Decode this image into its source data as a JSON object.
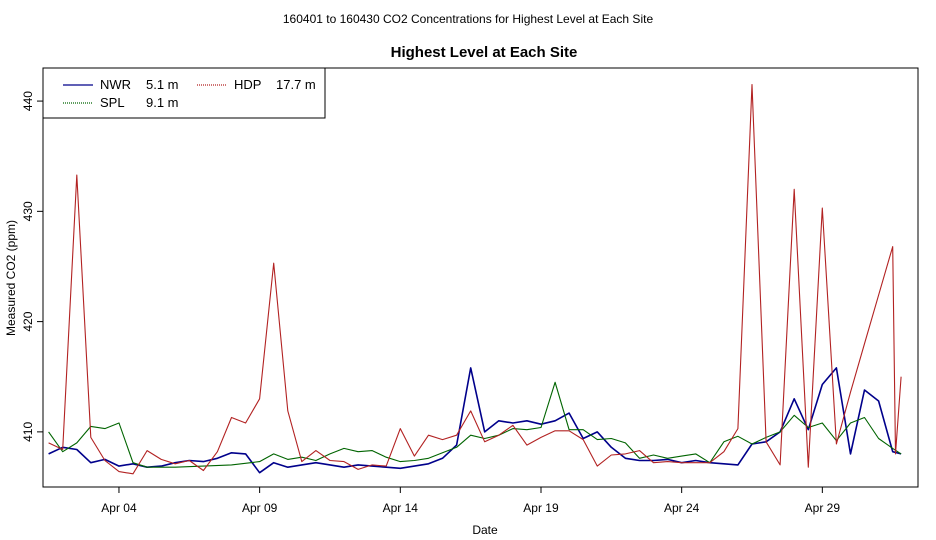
{
  "header": {
    "title": "160401  to  160430 CO2 Concentrations for Highest Level at Each Site"
  },
  "chart_data": {
    "type": "line",
    "title": "Highest Level at Each Site",
    "xlabel": "Date",
    "ylabel": "Measured CO2 (ppm)",
    "xlim": [
      1.3,
      32.4
    ],
    "ylim": [
      405,
      443
    ],
    "x_ticks": [
      {
        "value": 4,
        "label": "Apr 04"
      },
      {
        "value": 9,
        "label": "Apr 09"
      },
      {
        "value": 14,
        "label": "Apr 14"
      },
      {
        "value": 19,
        "label": "Apr 19"
      },
      {
        "value": 24,
        "label": "Apr 24"
      },
      {
        "value": 29,
        "label": "Apr 29"
      }
    ],
    "y_ticks": [
      410,
      420,
      430,
      440
    ],
    "legend": {
      "position": "top-left",
      "entries": [
        {
          "name": "NWR",
          "height": "5.1 m"
        },
        {
          "name": "SPL",
          "height": "9.1 m"
        },
        {
          "name": "HDP",
          "height": "17.7 m"
        }
      ]
    },
    "series": [
      {
        "name": "NWR",
        "height": "5.1 m",
        "color": "#00008b",
        "points": [
          [
            1.5,
            408
          ],
          [
            2.0,
            408.6
          ],
          [
            2.5,
            408.4
          ],
          [
            3.0,
            407.2
          ],
          [
            3.5,
            407.5
          ],
          [
            4.0,
            406.9
          ],
          [
            4.5,
            407.1
          ],
          [
            5.0,
            406.8
          ],
          [
            5.5,
            406.9
          ],
          [
            6.0,
            407.2
          ],
          [
            6.5,
            407.4
          ],
          [
            7.0,
            407.3
          ],
          [
            7.5,
            407.6
          ],
          [
            8.0,
            408.1
          ],
          [
            8.5,
            408.0
          ],
          [
            9.0,
            406.3
          ],
          [
            9.5,
            407.2
          ],
          [
            10.0,
            406.8
          ],
          [
            10.5,
            407.0
          ],
          [
            11.0,
            407.2
          ],
          [
            11.5,
            407.0
          ],
          [
            12.0,
            406.8
          ],
          [
            12.5,
            407.0
          ],
          [
            13.0,
            406.9
          ],
          [
            13.5,
            406.8
          ],
          [
            14.0,
            406.7
          ],
          [
            14.5,
            406.9
          ],
          [
            15.0,
            407.1
          ],
          [
            15.5,
            407.6
          ],
          [
            16.0,
            408.8
          ],
          [
            16.5,
            415.8
          ],
          [
            17.0,
            410.0
          ],
          [
            17.5,
            411.0
          ],
          [
            18.0,
            410.8
          ],
          [
            18.5,
            411.0
          ],
          [
            19.0,
            410.7
          ],
          [
            19.5,
            411.0
          ],
          [
            20.0,
            411.7
          ],
          [
            20.5,
            409.4
          ],
          [
            21.0,
            410.0
          ],
          [
            21.5,
            408.6
          ],
          [
            22.0,
            407.6
          ],
          [
            22.5,
            407.4
          ],
          [
            23.0,
            407.4
          ],
          [
            23.5,
            407.5
          ],
          [
            24.0,
            407.2
          ],
          [
            24.5,
            407.4
          ],
          [
            25.0,
            407.2
          ],
          [
            25.5,
            407.1
          ],
          [
            26.0,
            407.0
          ],
          [
            26.5,
            408.9
          ],
          [
            27.0,
            409.1
          ],
          [
            27.5,
            410.0
          ],
          [
            28.0,
            413.0
          ],
          [
            28.5,
            410.2
          ],
          [
            29.0,
            414.3
          ],
          [
            29.5,
            415.8
          ],
          [
            30.0,
            408.0
          ],
          [
            30.5,
            413.8
          ],
          [
            31.0,
            412.8
          ],
          [
            31.5,
            408.2
          ],
          [
            31.8,
            408.0
          ]
        ]
      },
      {
        "name": "SPL",
        "height": "9.1 m",
        "color": "#006400",
        "points": [
          [
            1.5,
            410
          ],
          [
            2.0,
            408.2
          ],
          [
            2.5,
            409.0
          ],
          [
            3.0,
            410.5
          ],
          [
            3.5,
            410.3
          ],
          [
            4.0,
            410.8
          ],
          [
            4.5,
            407.2
          ],
          [
            5.0,
            406.8
          ],
          [
            5.5,
            406.8
          ],
          [
            6.0,
            406.8
          ],
          [
            7.0,
            406.9
          ],
          [
            8.0,
            407.0
          ],
          [
            9.0,
            407.3
          ],
          [
            9.5,
            408.0
          ],
          [
            10.0,
            407.5
          ],
          [
            10.5,
            407.7
          ],
          [
            11.0,
            407.4
          ],
          [
            11.5,
            408.0
          ],
          [
            12.0,
            408.5
          ],
          [
            12.5,
            408.2
          ],
          [
            13.0,
            408.3
          ],
          [
            13.5,
            407.7
          ],
          [
            14.0,
            407.3
          ],
          [
            14.5,
            407.4
          ],
          [
            15.0,
            407.6
          ],
          [
            15.5,
            408.1
          ],
          [
            16.0,
            408.6
          ],
          [
            16.5,
            409.7
          ],
          [
            17.0,
            409.4
          ],
          [
            17.5,
            409.7
          ],
          [
            18.0,
            410.3
          ],
          [
            18.5,
            410.2
          ],
          [
            19.0,
            410.4
          ],
          [
            19.5,
            414.5
          ],
          [
            20.0,
            410.2
          ],
          [
            20.5,
            410.2
          ],
          [
            21.0,
            409.3
          ],
          [
            21.5,
            409.4
          ],
          [
            22.0,
            409.0
          ],
          [
            22.5,
            407.6
          ],
          [
            23.0,
            407.9
          ],
          [
            23.5,
            407.6
          ],
          [
            24.0,
            407.8
          ],
          [
            24.5,
            408.0
          ],
          [
            25.0,
            407.2
          ],
          [
            25.5,
            409.1
          ],
          [
            26.0,
            409.6
          ],
          [
            26.5,
            408.9
          ],
          [
            27.0,
            409.5
          ],
          [
            27.5,
            410.0
          ],
          [
            28.0,
            411.5
          ],
          [
            28.5,
            410.4
          ],
          [
            29.0,
            410.8
          ],
          [
            29.5,
            409.2
          ],
          [
            30.0,
            410.8
          ],
          [
            30.5,
            411.3
          ],
          [
            31.0,
            409.4
          ],
          [
            31.5,
            408.5
          ],
          [
            31.8,
            408.0
          ]
        ]
      },
      {
        "name": "HDP",
        "height": "17.7 m",
        "color": "#b22222",
        "points": [
          [
            1.5,
            409
          ],
          [
            2.0,
            408.4
          ],
          [
            2.5,
            433.3
          ],
          [
            3.0,
            409.5
          ],
          [
            3.5,
            407.4
          ],
          [
            4.0,
            406.4
          ],
          [
            4.5,
            406.2
          ],
          [
            5.0,
            408.3
          ],
          [
            5.5,
            407.5
          ],
          [
            6.0,
            407.1
          ],
          [
            6.5,
            407.4
          ],
          [
            7.0,
            406.5
          ],
          [
            7.5,
            408.2
          ],
          [
            8.0,
            411.3
          ],
          [
            8.5,
            410.8
          ],
          [
            9.0,
            413.0
          ],
          [
            9.5,
            425.3
          ],
          [
            10.0,
            411.9
          ],
          [
            10.5,
            407.3
          ],
          [
            11.0,
            408.3
          ],
          [
            11.5,
            407.4
          ],
          [
            12.0,
            407.3
          ],
          [
            12.5,
            406.6
          ],
          [
            13.0,
            407.0
          ],
          [
            13.5,
            406.9
          ],
          [
            14.0,
            410.3
          ],
          [
            14.5,
            407.8
          ],
          [
            15.0,
            409.7
          ],
          [
            15.5,
            409.3
          ],
          [
            16.0,
            409.7
          ],
          [
            16.5,
            411.9
          ],
          [
            17.0,
            409.1
          ],
          [
            17.5,
            409.7
          ],
          [
            18.0,
            410.6
          ],
          [
            18.5,
            408.8
          ],
          [
            19.0,
            409.5
          ],
          [
            19.5,
            410.1
          ],
          [
            20.0,
            410.1
          ],
          [
            20.5,
            409.3
          ],
          [
            21.0,
            406.9
          ],
          [
            21.5,
            407.9
          ],
          [
            22.0,
            408.0
          ],
          [
            22.5,
            408.3
          ],
          [
            23.0,
            407.2
          ],
          [
            23.5,
            407.3
          ],
          [
            24.0,
            407.2
          ],
          [
            24.5,
            407.2
          ],
          [
            25.0,
            407.2
          ],
          [
            25.5,
            408.2
          ],
          [
            26.0,
            410.3
          ],
          [
            26.5,
            441.5
          ],
          [
            27.0,
            409.1
          ],
          [
            27.5,
            407.0
          ],
          [
            28.0,
            432.0
          ],
          [
            28.5,
            406.8
          ],
          [
            29.0,
            430.3
          ],
          [
            29.5,
            408.9
          ],
          [
            30.0,
            413.6
          ],
          [
            30.5,
            418.0
          ],
          [
            31.0,
            422.4
          ],
          [
            31.5,
            426.8
          ],
          [
            31.6,
            408.0
          ],
          [
            31.8,
            415.0
          ]
        ]
      }
    ]
  }
}
